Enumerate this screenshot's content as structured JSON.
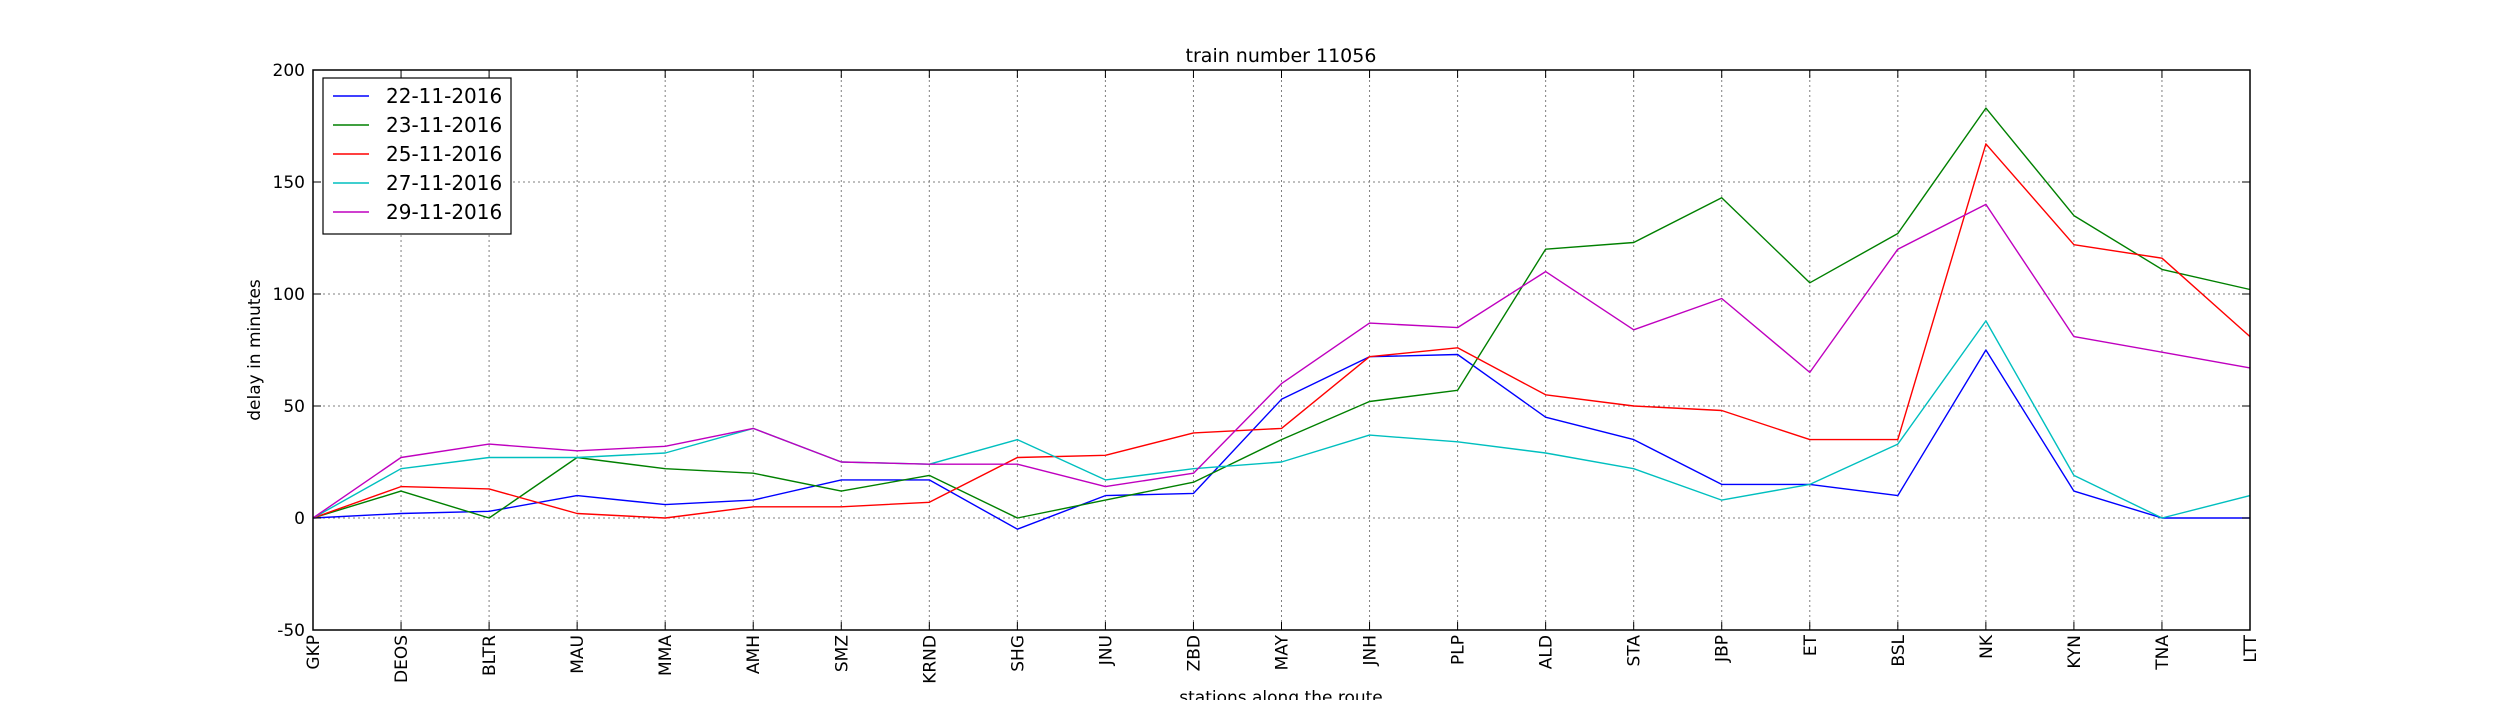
{
  "chart_data": {
    "type": "line",
    "title": "train number 11056",
    "xlabel": "stations along the route",
    "ylabel": "delay in minutes",
    "ylim": [
      -50,
      200
    ],
    "yticks": [
      -50,
      0,
      50,
      100,
      150,
      200
    ],
    "grid": true,
    "legend_position": "top-left",
    "categories": [
      "GKP",
      "DEOS",
      "BLTR",
      "MAU",
      "MMA",
      "AMH",
      "SMZ",
      "KRND",
      "SHG",
      "JNU",
      "ZBD",
      "MAY",
      "JNH",
      "PLP",
      "ALD",
      "STA",
      "JBP",
      "ET",
      "BSL",
      "NK",
      "KYN",
      "TNA",
      "LTT"
    ],
    "series": [
      {
        "name": "22-11-2016",
        "color": "#0000ff",
        "values": [
          0,
          2,
          3,
          10,
          6,
          8,
          17,
          17,
          -5,
          10,
          11,
          53,
          72,
          73,
          45,
          35,
          15,
          15,
          10,
          75,
          12,
          0,
          0
        ]
      },
      {
        "name": "23-11-2016",
        "color": "#008000",
        "values": [
          0,
          12,
          0,
          27,
          22,
          20,
          12,
          19,
          0,
          8,
          16,
          35,
          52,
          57,
          120,
          123,
          143,
          105,
          127,
          183,
          135,
          111,
          102
        ]
      },
      {
        "name": "25-11-2016",
        "color": "#ff0000",
        "values": [
          0,
          14,
          13,
          2,
          0,
          5,
          5,
          7,
          27,
          28,
          38,
          40,
          72,
          76,
          55,
          50,
          48,
          35,
          35,
          167,
          122,
          116,
          81
        ]
      },
      {
        "name": "27-11-2016",
        "color": "#00bfbf",
        "values": [
          0,
          22,
          27,
          27,
          29,
          40,
          25,
          24,
          35,
          17,
          22,
          25,
          37,
          34,
          29,
          22,
          8,
          15,
          33,
          88,
          19,
          0,
          10
        ]
      },
      {
        "name": "29-11-2016",
        "color": "#bf00bf",
        "values": [
          0,
          27,
          33,
          30,
          32,
          40,
          25,
          24,
          24,
          14,
          20,
          60,
          87,
          85,
          110,
          84,
          98,
          65,
          120,
          140,
          81,
          74,
          67
        ]
      }
    ]
  }
}
